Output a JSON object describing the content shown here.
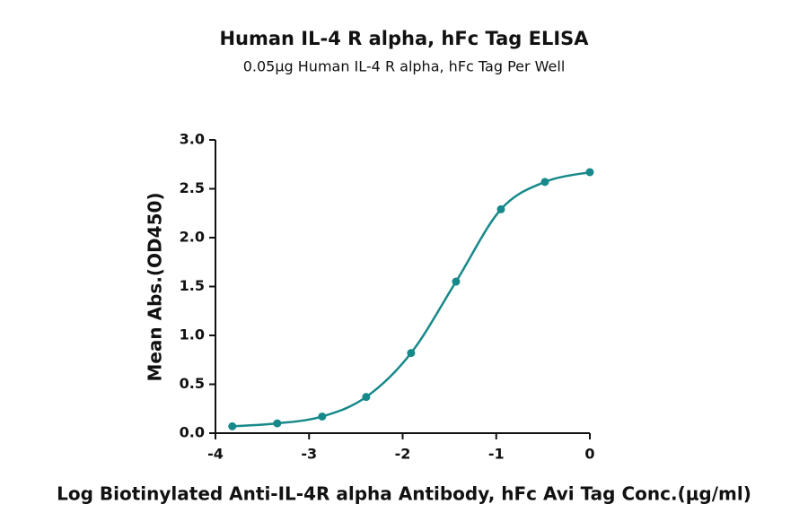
{
  "chart_data": {
    "type": "scatter",
    "title": "Human IL-4 R alpha, hFc Tag ELISA",
    "subtitle": "0.05μg Human IL-4 R alpha, hFc Tag Per Well",
    "x_label": "Log Biotinylated Anti-IL-4R alpha Antibody, hFc Avi Tag Conc.(μg/ml)",
    "y_label": "Mean Abs.(OD450)",
    "series": [
      {
        "color": "#17898a",
        "x": [
          -3.82,
          -3.34,
          -2.86,
          -2.39,
          -1.91,
          -1.43,
          -0.95,
          -0.48,
          0
        ],
        "values": [
          0.07,
          0.1,
          0.17,
          0.37,
          0.82,
          1.55,
          2.29,
          2.57,
          2.67
        ]
      }
    ],
    "xlim": [
      -4,
      0
    ],
    "xticks": [
      -4,
      -3,
      -2,
      -1,
      0
    ],
    "ylim": [
      0,
      3.0
    ],
    "yticks": [
      {
        "value": 0,
        "label": "0.0"
      },
      {
        "value": 0.5,
        "label": "0.5"
      },
      {
        "value": 1,
        "label": "1.0"
      },
      {
        "value": 1.5,
        "label": "1.5"
      },
      {
        "value": 2,
        "label": "2.0"
      },
      {
        "value": 2.5,
        "label": "2.5"
      },
      {
        "value": 3,
        "label": "3.0"
      }
    ],
    "grid": false
  }
}
